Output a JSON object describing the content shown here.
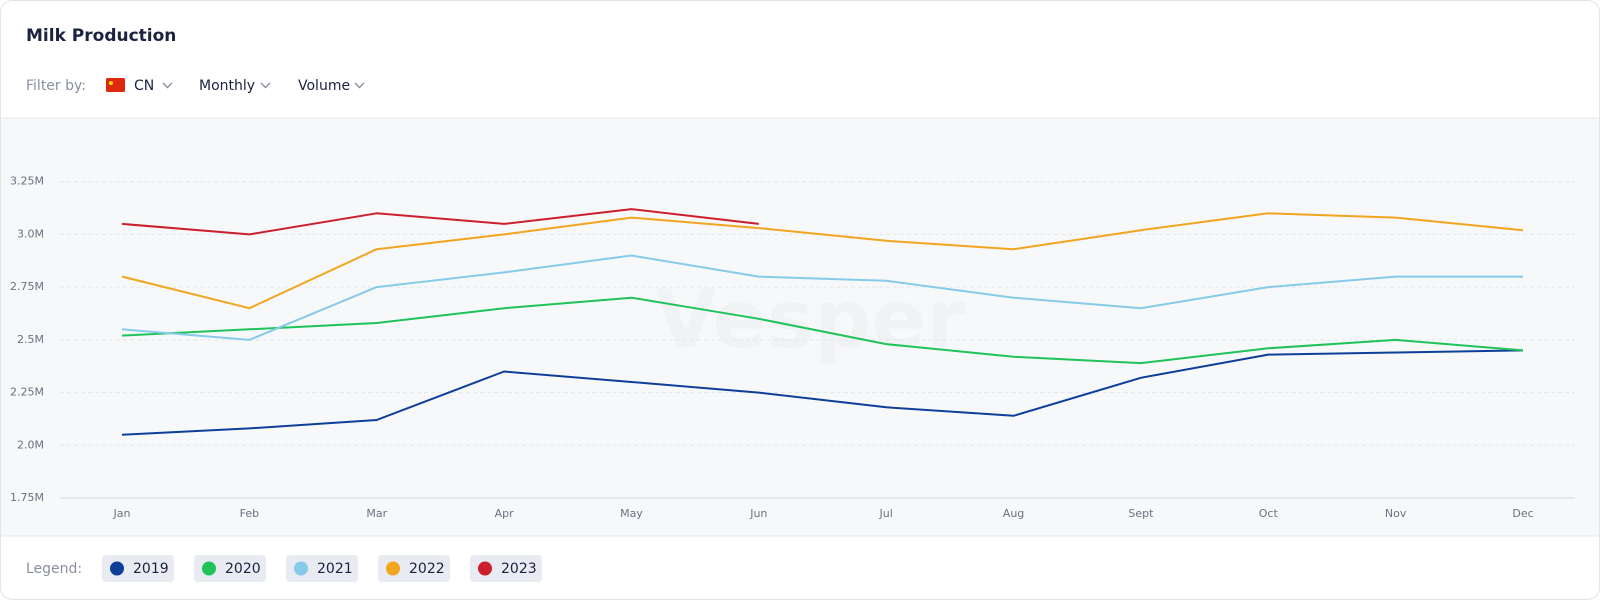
{
  "filters": {
    "label": "Filter by:",
    "items": [
      "CN",
      "Monthly",
      "Volume"
    ]
  },
  "watermark": "Vesper",
  "chart_data": {
    "type": "line",
    "title": "Milk Production",
    "categories": [
      "Jan",
      "Feb",
      "Mar",
      "Apr",
      "May",
      "Jun",
      "Jul",
      "Aug",
      "Sept",
      "Oct",
      "Nov",
      "Dec"
    ],
    "series": [
      {
        "name": "2019",
        "color": "#0d3f9a",
        "values": [
          2.05,
          2.08,
          2.12,
          2.35,
          2.3,
          2.25,
          2.18,
          2.14,
          2.32,
          2.43,
          2.44,
          2.45
        ]
      },
      {
        "name": "2020",
        "color": "#1fc35a",
        "values": [
          2.52,
          2.55,
          2.58,
          2.65,
          2.7,
          2.6,
          2.48,
          2.42,
          2.39,
          2.46,
          2.5,
          2.45
        ]
      },
      {
        "name": "2021",
        "color": "#86cbe8",
        "values": [
          2.55,
          2.5,
          2.75,
          2.82,
          2.9,
          2.8,
          2.78,
          2.7,
          2.65,
          2.75,
          2.8,
          2.8
        ]
      },
      {
        "name": "2022",
        "color": "#f2a51f",
        "values": [
          2.8,
          2.65,
          2.93,
          3.0,
          3.08,
          3.03,
          2.97,
          2.93,
          3.02,
          3.1,
          3.08,
          3.02
        ]
      },
      {
        "name": "2023",
        "color": "#cc1f2e",
        "values": [
          3.05,
          3.0,
          3.1,
          3.05,
          3.12,
          3.05,
          null,
          null,
          null,
          null,
          null,
          null
        ]
      }
    ],
    "ylim": [
      1.75,
      3.5
    ],
    "yticks": [
      {
        "value": 1.75,
        "label": "1.75M"
      },
      {
        "value": 2.0,
        "label": "2.0M"
      },
      {
        "value": 2.25,
        "label": "2.25M"
      },
      {
        "value": 2.5,
        "label": "2.5M"
      },
      {
        "value": 2.75,
        "label": "2.75M"
      },
      {
        "value": 3.0,
        "label": "3.0M"
      },
      {
        "value": 3.25,
        "label": "3.25M"
      }
    ],
    "grid": true,
    "legend_label": "Legend:"
  }
}
